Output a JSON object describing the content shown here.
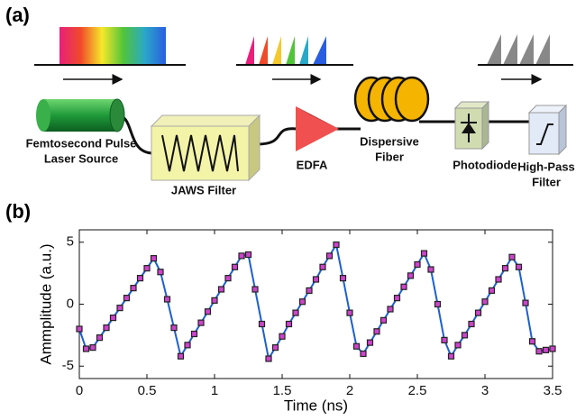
{
  "panels": [
    "(a)",
    "(b)"
  ],
  "diagram": {
    "components": [
      {
        "label": [
          "Femtosecond Pulse",
          "Laser Source"
        ]
      },
      {
        "label": [
          "JAWS Filter"
        ]
      },
      {
        "label": [
          "EDFA"
        ]
      },
      {
        "label": [
          "Dispersive",
          "Fiber"
        ]
      },
      {
        "label": [
          "Photodiode"
        ]
      },
      {
        "label": [
          "High-Pass",
          "Filter"
        ]
      }
    ]
  },
  "chart_data": {
    "type": "line",
    "xlabel": "Time (ns)",
    "ylabel": "Ammplitude (a.u.)",
    "x": [
      0,
      0.05,
      0.1,
      0.15,
      0.2,
      0.25,
      0.3,
      0.35,
      0.4,
      0.45,
      0.5,
      0.55,
      0.6,
      0.65,
      0.7,
      0.75,
      0.8,
      0.85,
      0.9,
      0.95,
      1,
      1.05,
      1.1,
      1.15,
      1.2,
      1.25,
      1.3,
      1.35,
      1.4,
      1.45,
      1.5,
      1.55,
      1.6,
      1.65,
      1.7,
      1.75,
      1.8,
      1.85,
      1.9,
      1.95,
      2,
      2.05,
      2.1,
      2.15,
      2.2,
      2.25,
      2.3,
      2.35,
      2.4,
      2.45,
      2.5,
      2.55,
      2.6,
      2.65,
      2.7,
      2.75,
      2.8,
      2.85,
      2.9,
      2.95,
      3,
      3.05,
      3.1,
      3.15,
      3.2,
      3.25,
      3.3,
      3.35,
      3.4,
      3.45,
      3.5
    ],
    "values": [
      -2.0,
      -3.6,
      -3.5,
      -2.7,
      -1.9,
      -1.1,
      -0.3,
      0.5,
      1.3,
      2.1,
      2.9,
      3.7,
      2.6,
      0.4,
      -1.9,
      -4.2,
      -3.3,
      -2.4,
      -1.5,
      -0.6,
      0.3,
      1.2,
      2.1,
      3.0,
      3.9,
      4.0,
      1.2,
      -1.6,
      -4.4,
      -3.5,
      -2.6,
      -1.6,
      -0.7,
      0.2,
      1.1,
      2.0,
      3.0,
      3.9,
      4.8,
      2.1,
      -0.7,
      -3.4,
      -4.0,
      -3.1,
      -2.2,
      -1.3,
      -0.4,
      0.5,
      1.4,
      2.3,
      3.2,
      4.1,
      2.8,
      0.0,
      -2.9,
      -4.2,
      -3.3,
      -2.5,
      -1.6,
      -0.7,
      0.2,
      1.1,
      2.0,
      2.9,
      3.8,
      3.0,
      0.1,
      -3.0,
      -3.8,
      -3.7,
      -3.6
    ],
    "color": "#1f5fd0",
    "marker_color": "#cc44cc",
    "markers": true,
    "xlim": [
      0,
      3.5
    ],
    "xticks": [
      0,
      0.5,
      1,
      1.5,
      2,
      2.5,
      3,
      3.5
    ],
    "ylim": [
      -6,
      6
    ],
    "yticks": [
      -5,
      0,
      5
    ]
  }
}
